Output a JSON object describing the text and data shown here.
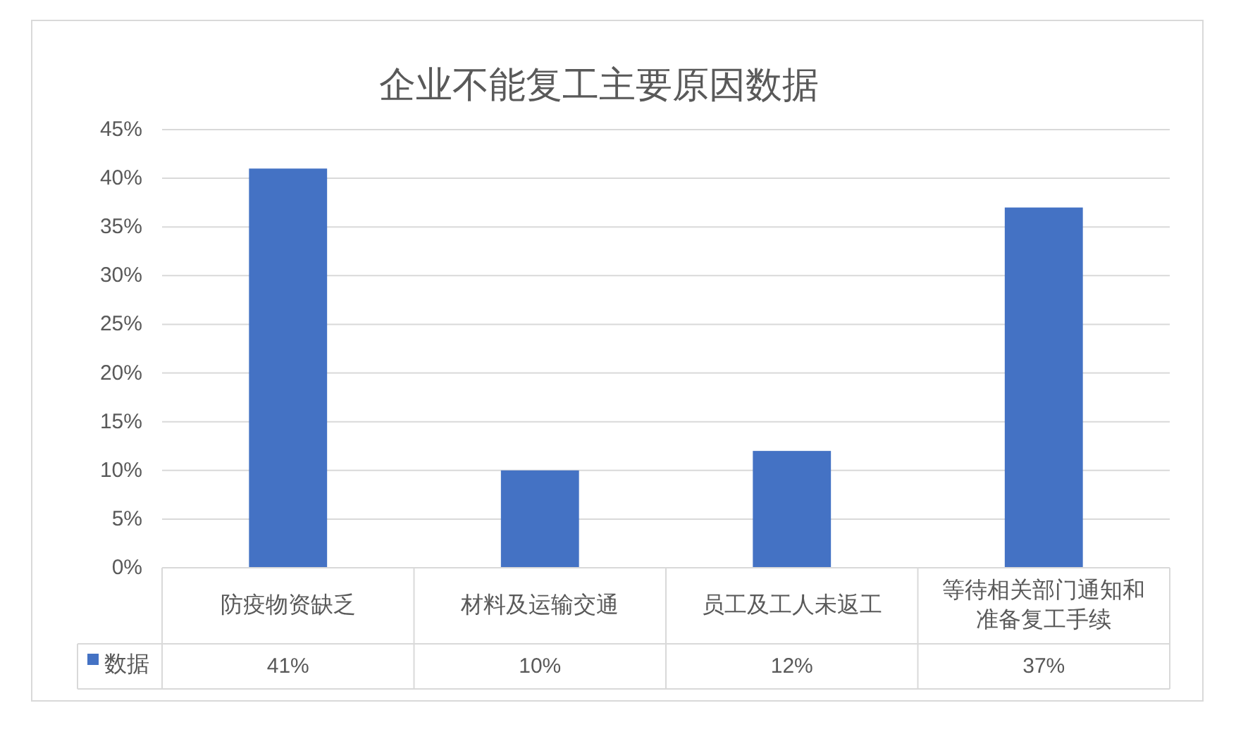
{
  "chart_data": {
    "type": "bar",
    "title": "企业不能复工主要原因数据",
    "categories": [
      "防疫物资缺乏",
      "材料及运输交通",
      "员工及工人未返工",
      "等待相关部门通知和准备复工手续"
    ],
    "series": [
      {
        "name": "数据",
        "color": "#4472c4",
        "values": [
          41,
          10,
          12,
          37
        ],
        "value_labels": [
          "41%",
          "10%",
          "12%",
          "37%"
        ]
      }
    ],
    "ylim": [
      0,
      45
    ],
    "yticks": [
      {
        "value": 0,
        "label": "0%"
      },
      {
        "value": 5,
        "label": "5%"
      },
      {
        "value": 10,
        "label": "10%"
      },
      {
        "value": 15,
        "label": "15%"
      },
      {
        "value": 20,
        "label": "20%"
      },
      {
        "value": 25,
        "label": "25%"
      },
      {
        "value": 30,
        "label": "30%"
      },
      {
        "value": 35,
        "label": "35%"
      },
      {
        "value": 40,
        "label": "40%"
      },
      {
        "value": 45,
        "label": "45%"
      }
    ],
    "grid": "y",
    "legend": "bottom"
  }
}
